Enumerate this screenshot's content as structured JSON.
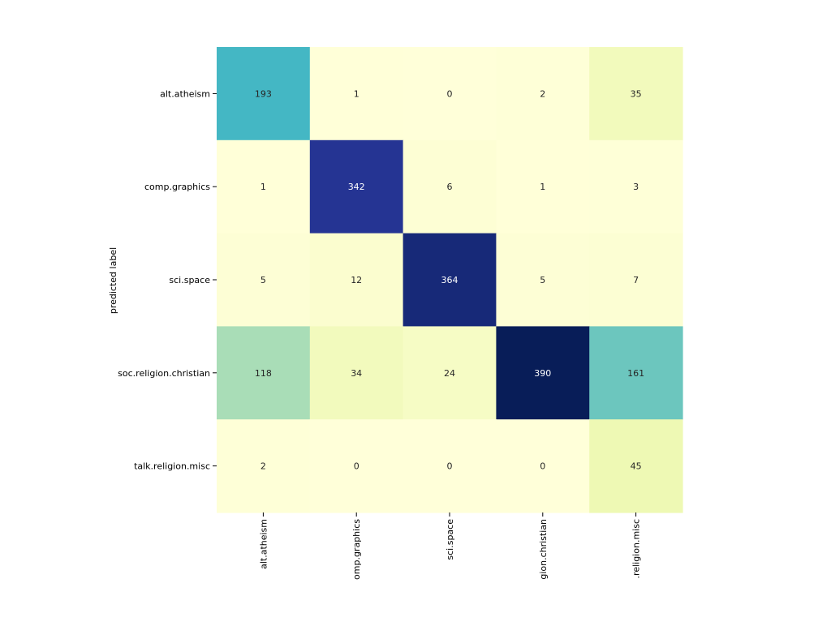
{
  "chart_data": {
    "type": "heatmap",
    "title": "",
    "xlabel": "",
    "ylabel": "predicted label",
    "rows": [
      "alt.atheism",
      "comp.graphics",
      "sci.space",
      "soc.religion.christian",
      "talk.religion.misc"
    ],
    "columns": [
      "alt.atheism",
      "omp.graphics",
      "sci.space",
      "gion.christian",
      ".religion.misc"
    ],
    "values": [
      [
        193,
        1,
        0,
        2,
        35
      ],
      [
        1,
        342,
        6,
        1,
        3
      ],
      [
        5,
        12,
        364,
        5,
        7
      ],
      [
        118,
        34,
        24,
        390,
        161
      ],
      [
        2,
        0,
        0,
        0,
        45
      ]
    ],
    "colormap": "YlGnBu",
    "value_range": [
      0,
      390
    ],
    "colorbar": false
  },
  "colors": {
    "light_text": "#ffffff",
    "dark_text": "#262626",
    "tick": "#000000"
  }
}
